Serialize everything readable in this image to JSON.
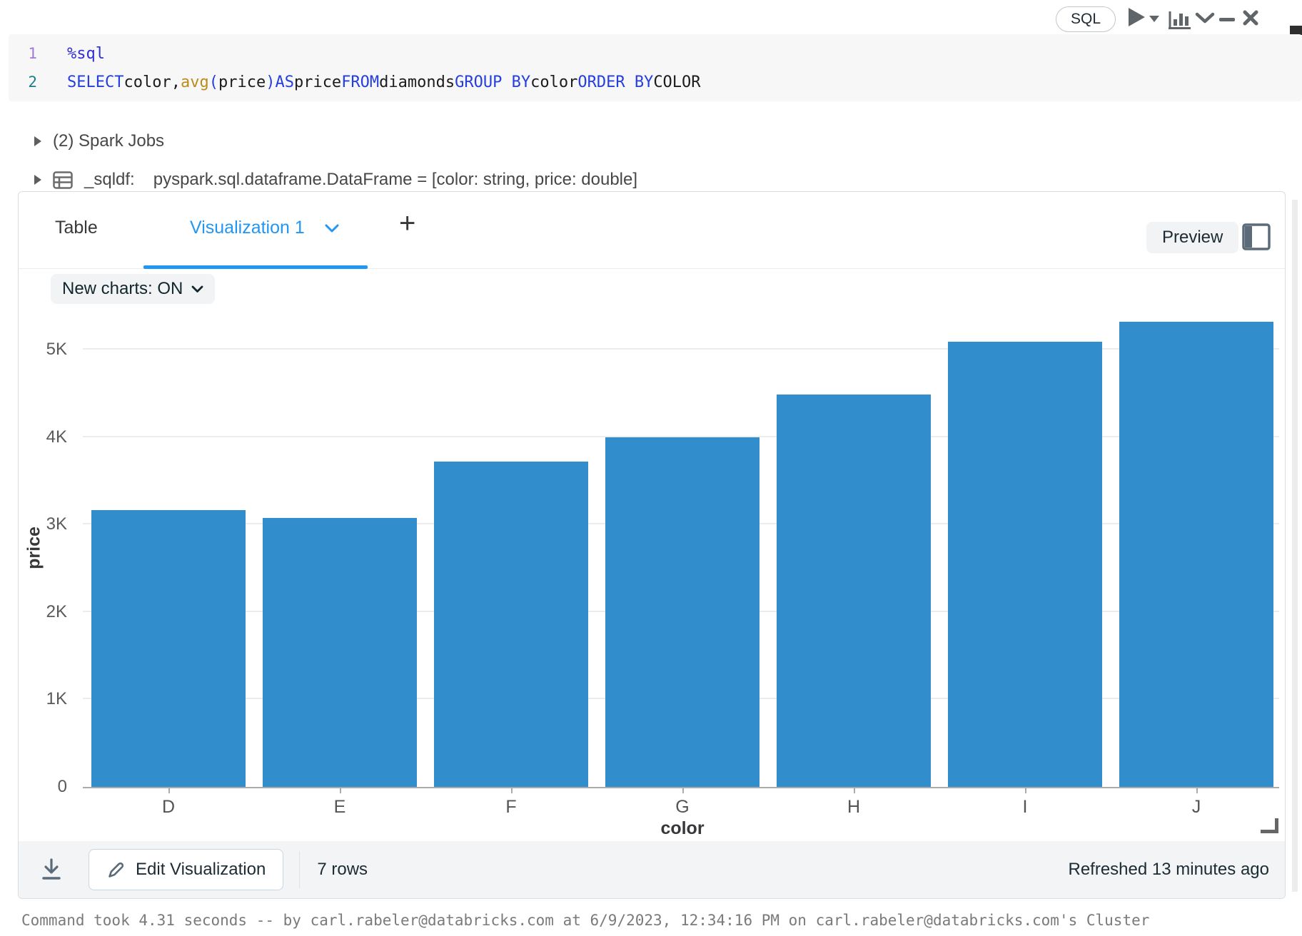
{
  "cell_toolbar": {
    "lang_badge": "SQL",
    "icons": {
      "run": "play-triangle-with-dropdown",
      "chart": "bar-chart-icon",
      "collapse": "chevron-down-icon",
      "minimize": "minus-icon",
      "close": "x-icon"
    }
  },
  "code": {
    "lines": [
      {
        "num": "1",
        "num_color": "#a179d9",
        "tokens": [
          {
            "text": "%sql",
            "style": "magic"
          }
        ]
      },
      {
        "num": "2",
        "num_color": "#1b7e8a",
        "tokens": [
          {
            "text": "SELECT",
            "style": "kw"
          },
          {
            "text": " color, ",
            "style": "id"
          },
          {
            "text": "avg",
            "style": "fn"
          },
          {
            "text": "(",
            "style": "kw"
          },
          {
            "text": "price",
            "style": "id"
          },
          {
            "text": ")",
            "style": "kw"
          },
          {
            "text": " ",
            "style": "id"
          },
          {
            "text": "AS",
            "style": "kw"
          },
          {
            "text": " price ",
            "style": "id"
          },
          {
            "text": "FROM",
            "style": "kw"
          },
          {
            "text": " diamonds ",
            "style": "id"
          },
          {
            "text": "GROUP BY",
            "style": "kw"
          },
          {
            "text": " color ",
            "style": "id"
          },
          {
            "text": "ORDER BY",
            "style": "kw"
          },
          {
            "text": " COLOR",
            "style": "id"
          }
        ]
      }
    ]
  },
  "results_meta": {
    "spark_jobs": "(2) Spark Jobs",
    "sqldf_name": "_sqldf:",
    "sqldf_type": "pyspark.sql.dataframe.DataFrame = [color: string, price: double]"
  },
  "panel": {
    "tabs": {
      "table": "Table",
      "visualization": "Visualization 1",
      "add": "+"
    },
    "preview_label": "Preview",
    "new_charts_label": "New charts: ON",
    "footer": {
      "edit_label": "Edit Visualization",
      "rows_label": "7 rows",
      "refreshed_label": "Refreshed 13 minutes ago"
    }
  },
  "chart_data": {
    "type": "bar",
    "categories": [
      "D",
      "E",
      "F",
      "G",
      "H",
      "I",
      "J"
    ],
    "values": [
      3170,
      3077,
      3725,
      3999,
      4487,
      5092,
      5324
    ],
    "title": "",
    "xlabel": "color",
    "ylabel": "price",
    "ylim": [
      0,
      5500
    ],
    "yticks": [
      0,
      1000,
      2000,
      3000,
      4000,
      5000
    ],
    "ytick_labels": [
      "0",
      "1K",
      "2K",
      "3K",
      "4K",
      "5K"
    ],
    "bar_color": "#318dcb",
    "grid": true,
    "legend": false
  },
  "status_line": "Command took 4.31 seconds -- by carl.rabeler@databricks.com at 6/9/2023, 12:34:16 PM on carl.rabeler@databricks.com's Cluster",
  "colors": {
    "accent_blue": "#2196f3",
    "bar_blue": "#318dcb",
    "icon_gray": "#5f6569",
    "slate_icon": "#5b6b7a"
  }
}
